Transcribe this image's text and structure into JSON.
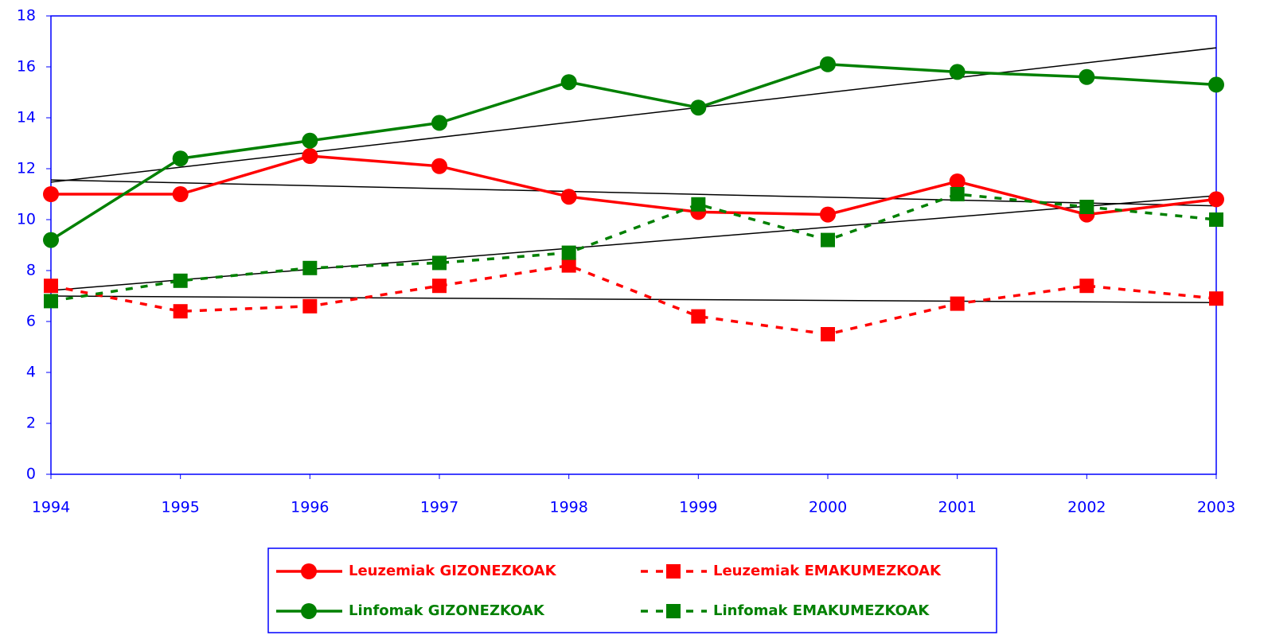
{
  "chart_data": {
    "type": "line",
    "x": [
      1994,
      1995,
      1996,
      1997,
      1998,
      1999,
      2000,
      2001,
      2002,
      2003
    ],
    "xlim": [
      1994,
      2003
    ],
    "xticks": [
      1994,
      1995,
      1996,
      1997,
      1998,
      1999,
      2000,
      2001,
      2002,
      2003
    ],
    "ylim": [
      0,
      18
    ],
    "yticks": [
      0,
      2,
      4,
      6,
      8,
      10,
      12,
      14,
      16,
      18
    ],
    "trendline": true,
    "series": [
      {
        "name": "Leuzemiak GIZONEZKOAK",
        "color": "#ff0000",
        "dash": false,
        "marker": "circle",
        "values": [
          11.0,
          11.0,
          12.5,
          12.1,
          10.9,
          10.3,
          10.2,
          11.5,
          10.2,
          10.8
        ]
      },
      {
        "name": "Leuzemiak EMAKUMEZKOAK",
        "color": "#ff0000",
        "dash": true,
        "marker": "square",
        "values": [
          7.4,
          6.4,
          6.6,
          7.4,
          8.2,
          6.2,
          5.5,
          6.7,
          7.4,
          6.9
        ]
      },
      {
        "name": "Linfomak GIZONEZKOAK",
        "color": "#008000",
        "dash": false,
        "marker": "circle",
        "values": [
          9.2,
          12.4,
          13.1,
          13.8,
          15.4,
          14.4,
          16.1,
          15.8,
          15.6,
          15.3
        ]
      },
      {
        "name": "Linfomak EMAKUMEZKOAK",
        "color": "#008000",
        "dash": true,
        "marker": "square",
        "values": [
          6.8,
          7.6,
          8.1,
          8.3,
          8.7,
          10.6,
          9.2,
          11.0,
          10.5,
          10.0
        ]
      }
    ]
  }
}
